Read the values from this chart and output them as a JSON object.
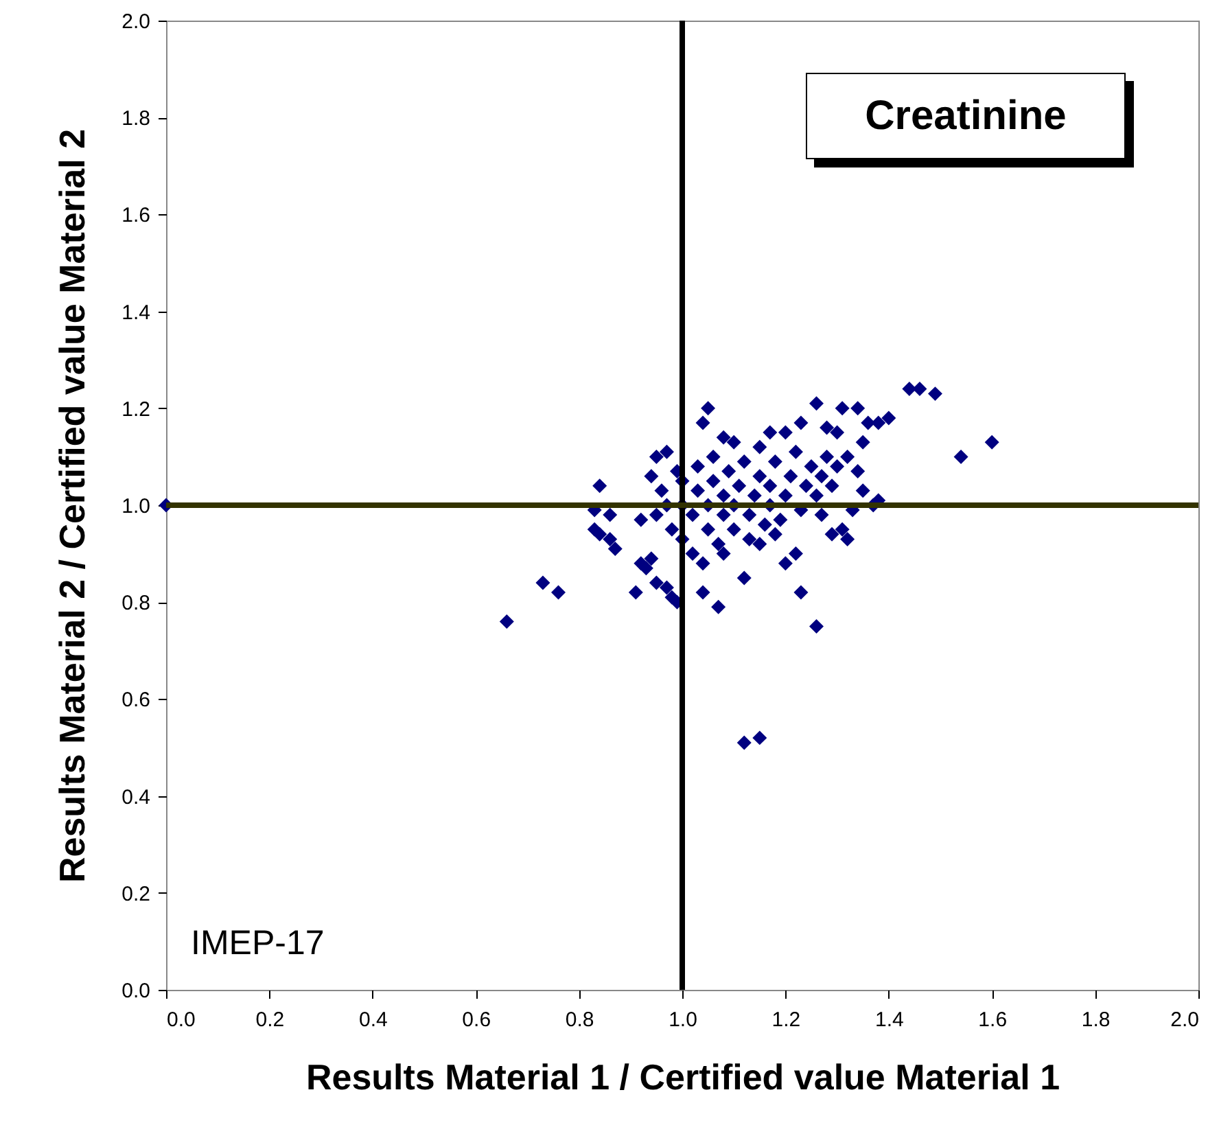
{
  "chart_data": {
    "type": "scatter",
    "title": "Creatinine",
    "xlabel": "Results Material 1 / Certified value Material 1",
    "ylabel": "Results Material 2 / Certified value Material 2",
    "annotations": [
      "IMEP-17"
    ],
    "marker": "diamond",
    "color": "#000080",
    "x": [
      0.0,
      0.66,
      0.73,
      0.76,
      0.84,
      0.83,
      0.83,
      0.84,
      0.86,
      0.86,
      0.87,
      0.91,
      0.92,
      0.93,
      0.94,
      0.95,
      0.95,
      0.94,
      0.97,
      0.97,
      0.99,
      0.98,
      1.04,
      1.07,
      1.12,
      1.15,
      1.26,
      1.23,
      1.12,
      1.2,
      1.22,
      1.29,
      1.32,
      1.31,
      1.54,
      1.6,
      1.44,
      1.46,
      1.49,
      1.4,
      1.38,
      1.36,
      1.34,
      1.31,
      1.26,
      1.28,
      1.23,
      1.2,
      1.17,
      1.05,
      1.04,
      1.1,
      1.08,
      1.15,
      1.37,
      1.38,
      1.33,
      1.35,
      1.34,
      1.35,
      1.32,
      1.3,
      0.92,
      0.95,
      0.97,
      0.98,
      1.0,
      1.0,
      1.0,
      1.02,
      1.02,
      1.03,
      1.03,
      1.05,
      1.05,
      1.06,
      1.06,
      1.07,
      1.08,
      1.08,
      1.09,
      1.1,
      1.1,
      1.11,
      1.12,
      1.13,
      1.13,
      1.14,
      1.15,
      1.16,
      1.17,
      1.17,
      1.18,
      1.19,
      1.2,
      1.21,
      1.22,
      1.23,
      1.24,
      1.25,
      1.26,
      1.27,
      1.28,
      1.29,
      1.3,
      1.27,
      1.04,
      1.08,
      1.15,
      1.18,
      0.96,
      0.99
    ],
    "values": [
      1.0,
      0.76,
      0.84,
      0.82,
      1.04,
      0.99,
      0.95,
      0.94,
      0.98,
      0.93,
      0.91,
      0.82,
      0.88,
      0.87,
      0.89,
      0.84,
      1.1,
      1.06,
      1.11,
      0.83,
      0.8,
      0.81,
      0.82,
      0.79,
      0.51,
      0.52,
      0.75,
      0.82,
      0.85,
      0.88,
      0.9,
      0.94,
      0.93,
      0.95,
      1.1,
      1.13,
      1.24,
      1.24,
      1.23,
      1.18,
      1.17,
      1.17,
      1.2,
      1.2,
      1.21,
      1.16,
      1.17,
      1.15,
      1.15,
      1.2,
      1.17,
      1.13,
      1.14,
      1.12,
      1.0,
      1.01,
      0.99,
      1.03,
      1.07,
      1.13,
      1.1,
      1.15,
      0.97,
      0.98,
      1.0,
      0.95,
      0.93,
      1.0,
      1.05,
      0.9,
      0.98,
      1.03,
      1.08,
      0.95,
      1.0,
      1.05,
      1.1,
      0.92,
      0.98,
      1.02,
      1.07,
      0.95,
      1.0,
      1.04,
      1.09,
      0.93,
      0.98,
      1.02,
      1.06,
      0.96,
      1.0,
      1.04,
      1.09,
      0.97,
      1.02,
      1.06,
      1.11,
      0.99,
      1.04,
      1.08,
      1.02,
      1.06,
      1.1,
      1.04,
      1.08,
      0.98,
      0.88,
      0.9,
      0.92,
      0.94,
      1.03,
      1.07
    ],
    "xlim": [
      0,
      2
    ],
    "ylim": [
      0,
      2
    ],
    "xticks": [
      {
        "value": 0,
        "label": "0.0"
      },
      0.2,
      0.4,
      0.6,
      0.8,
      {
        "value": 1,
        "label": "1.0"
      },
      1.2,
      1.4,
      1.6,
      1.8,
      {
        "value": 2,
        "label": "2.0"
      }
    ],
    "yticks": [
      {
        "value": 0,
        "label": "0.0"
      },
      0.2,
      0.4,
      0.6,
      0.8,
      {
        "value": 1,
        "label": "1.0"
      },
      1.2,
      1.4,
      1.6,
      1.8,
      {
        "value": 2,
        "label": "2.0"
      }
    ],
    "ref_lines": [
      {
        "axis": "x",
        "value": 1,
        "color": "#000000"
      },
      {
        "axis": "y",
        "value": 1,
        "color": "#333300"
      }
    ]
  }
}
